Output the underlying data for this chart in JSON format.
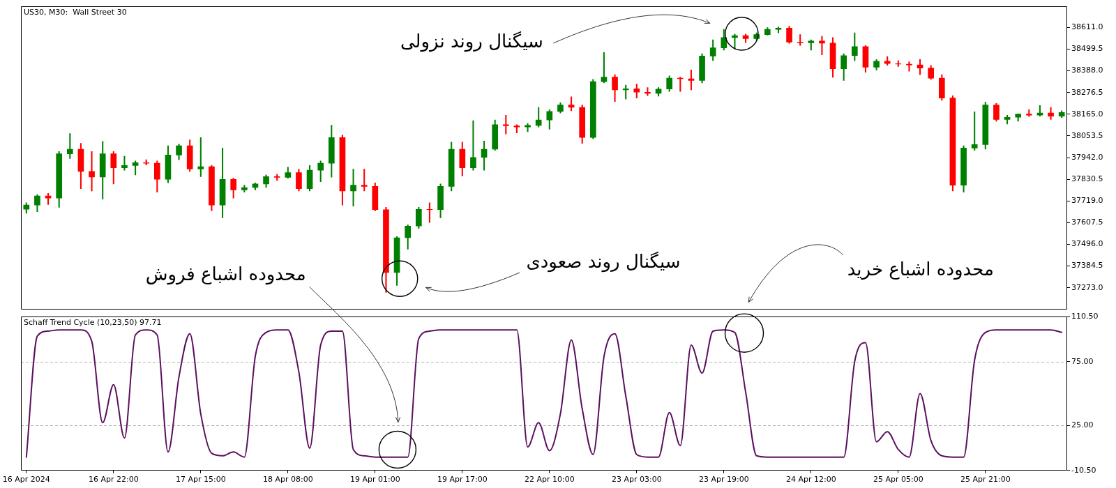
{
  "chart_data": [
    {
      "type": "candlestick",
      "title": "US30, M30:  Wall Street 30",
      "categories": [
        null,
        null,
        null,
        null,
        null,
        null,
        null,
        null,
        null,
        null,
        null,
        null,
        null,
        null,
        null,
        null,
        null,
        null,
        null,
        null,
        null,
        null,
        null,
        null,
        null,
        null,
        null,
        null,
        null,
        null,
        null,
        null,
        null,
        null,
        null,
        null,
        null,
        null,
        null,
        null,
        null,
        null,
        null,
        null,
        null,
        null,
        null,
        null,
        null,
        null,
        null,
        null,
        null,
        null,
        null,
        null,
        null,
        null,
        null,
        null,
        null,
        null,
        null,
        null,
        null,
        null,
        null,
        null,
        null,
        null,
        null,
        null,
        null,
        null,
        null,
        null,
        null,
        null,
        null,
        null,
        null,
        null,
        null,
        null,
        null,
        null,
        null,
        null,
        null,
        null,
        null,
        null,
        null,
        null,
        null,
        null
      ],
      "ohlc": [
        [
          37676,
          37710,
          37656,
          37698
        ],
        [
          37698,
          37752,
          37664,
          37745
        ],
        [
          37745,
          37758,
          37700,
          37734
        ],
        [
          37734,
          37973,
          37686,
          37961
        ],
        [
          37961,
          38065,
          37937,
          37985
        ],
        [
          37985,
          38015,
          37782,
          37871
        ],
        [
          37871,
          37973,
          37770,
          37842
        ],
        [
          37842,
          38025,
          37728,
          37961
        ],
        [
          37961,
          37973,
          37806,
          37889
        ],
        [
          37889,
          37949,
          37877,
          37901
        ],
        [
          37901,
          37925,
          37853,
          37916
        ],
        [
          37916,
          37931,
          37904,
          37913
        ],
        [
          37913,
          37925,
          37764,
          37830
        ],
        [
          37830,
          38003,
          37812,
          37955
        ],
        [
          37955,
          38011,
          37931,
          38003
        ],
        [
          38003,
          38033,
          37871,
          37883
        ],
        [
          37883,
          38045,
          37844,
          37895
        ],
        [
          37895,
          37901,
          37668,
          37698
        ],
        [
          37698,
          37991,
          37632,
          37830
        ],
        [
          37830,
          37836,
          37734,
          37776
        ],
        [
          37776,
          37800,
          37764,
          37788
        ],
        [
          37788,
          37812,
          37776,
          37806
        ],
        [
          37806,
          37853,
          37788,
          37844
        ],
        [
          37844,
          37856,
          37824,
          37840
        ],
        [
          37840,
          37892,
          37836,
          37865
        ],
        [
          37865,
          37883,
          37770,
          37782
        ],
        [
          37782,
          37901,
          37770,
          37877
        ],
        [
          37877,
          37925,
          37818,
          37913
        ],
        [
          37913,
          38108,
          37841,
          38045
        ],
        [
          38045,
          38057,
          37698,
          37770
        ],
        [
          37770,
          37883,
          37692,
          37800
        ],
        [
          37800,
          37883,
          37770,
          37794
        ],
        [
          37794,
          37812,
          37668,
          37674
        ],
        [
          37674,
          37686,
          37249,
          37351
        ],
        [
          37351,
          37536,
          37285,
          37530
        ],
        [
          37530,
          37596,
          37471,
          37590
        ],
        [
          37590,
          37686,
          37578,
          37676
        ],
        [
          37676,
          37710,
          37608,
          37674
        ],
        [
          37674,
          37806,
          37632,
          37794
        ],
        [
          37794,
          38021,
          37770,
          37985
        ],
        [
          37985,
          38021,
          37847,
          37889
        ],
        [
          37889,
          38132,
          37877,
          37943
        ],
        [
          37943,
          38027,
          37877,
          37985
        ],
        [
          37985,
          38135,
          37979,
          38111
        ],
        [
          38111,
          38159,
          38063,
          38105
        ],
        [
          38105,
          38111,
          38069,
          38099
        ],
        [
          38099,
          38117,
          38075,
          38107
        ],
        [
          38107,
          38200,
          38099,
          38135
        ],
        [
          38135,
          38188,
          38087,
          38179
        ],
        [
          38179,
          38224,
          38171,
          38212
        ],
        [
          38212,
          38254,
          38182,
          38200
        ],
        [
          38200,
          38212,
          38015,
          38045
        ],
        [
          38045,
          38344,
          38039,
          38332
        ],
        [
          38332,
          38482,
          38326,
          38356
        ],
        [
          38356,
          38368,
          38230,
          38290
        ],
        [
          38290,
          38314,
          38242,
          38296
        ],
        [
          38296,
          38320,
          38248,
          38278
        ],
        [
          38278,
          38302,
          38260,
          38272
        ],
        [
          38272,
          38302,
          38258,
          38294
        ],
        [
          38294,
          38362,
          38282,
          38350
        ],
        [
          38350,
          38356,
          38282,
          38347
        ],
        [
          38347,
          38392,
          38290,
          38338
        ],
        [
          38338,
          38476,
          38326,
          38464
        ],
        [
          38464,
          38547,
          38440,
          38506
        ],
        [
          38506,
          38601,
          38494,
          38559
        ],
        [
          38559,
          38577,
          38500,
          38569
        ],
        [
          38569,
          38577,
          38533,
          38553
        ],
        [
          38553,
          38583,
          38545,
          38574
        ],
        [
          38574,
          38610,
          38571,
          38601
        ],
        [
          38601,
          38613,
          38583,
          38607
        ],
        [
          38607,
          38617,
          38529,
          38535
        ],
        [
          38535,
          38574,
          38518,
          38532
        ],
        [
          38532,
          38547,
          38494,
          38541
        ],
        [
          38541,
          38565,
          38470,
          38530
        ],
        [
          38530,
          38559,
          38354,
          38398
        ],
        [
          38398,
          38476,
          38338,
          38466
        ],
        [
          38466,
          38583,
          38440,
          38512
        ],
        [
          38512,
          38518,
          38380,
          38406
        ],
        [
          38406,
          38446,
          38392,
          38437
        ],
        [
          38437,
          38461,
          38416,
          38425
        ],
        [
          38425,
          38440,
          38410,
          38422
        ],
        [
          38422,
          38434,
          38386,
          38418
        ],
        [
          38418,
          38446,
          38368,
          38402
        ],
        [
          38402,
          38416,
          38344,
          38350
        ],
        [
          38350,
          38368,
          38236,
          38248
        ],
        [
          38248,
          38260,
          37770,
          37800
        ],
        [
          37800,
          38003,
          37764,
          37991
        ],
        [
          37991,
          38177,
          37979,
          38009
        ],
        [
          38009,
          38227,
          37985,
          38212
        ],
        [
          38212,
          38220,
          38129,
          38138
        ],
        [
          38138,
          38159,
          38114,
          38149
        ],
        [
          38149,
          38167,
          38129,
          38166
        ],
        [
          38166,
          38188,
          38153,
          38160
        ],
        [
          38160,
          38210,
          38155,
          38171
        ],
        [
          38171,
          38200,
          38138,
          38155
        ],
        [
          38155,
          38183,
          38147,
          38174
        ]
      ],
      "colors": [
        "#008000",
        "#008000",
        "#ff0000",
        "#008000",
        "#008000",
        "#ff0000",
        "#ff0000",
        "#008000",
        "#ff0000",
        "#008000",
        "#008000",
        "#ff0000",
        "#ff0000",
        "#008000",
        "#008000",
        "#ff0000",
        "#008000",
        "#ff0000",
        "#008000",
        "#ff0000",
        "#008000",
        "#008000",
        "#008000",
        "#ff0000",
        "#008000",
        "#ff0000",
        "#008000",
        "#008000",
        "#008000",
        "#ff0000",
        "#008000",
        "#ff0000",
        "#ff0000",
        "#ff0000",
        "#008000",
        "#008000",
        "#008000",
        "#ff0000",
        "#008000",
        "#008000",
        "#ff0000",
        "#008000",
        "#008000",
        "#008000",
        "#ff0000",
        "#ff0000",
        "#008000",
        "#008000",
        "#008000",
        "#008000",
        "#ff0000",
        "#ff0000",
        "#008000",
        "#008000",
        "#ff0000",
        "#008000",
        "#ff0000",
        "#ff0000",
        "#008000",
        "#008000",
        "#ff0000",
        "#ff0000",
        "#008000",
        "#008000",
        "#008000",
        "#008000",
        "#ff0000",
        "#008000",
        "#008000",
        "#008000",
        "#ff0000",
        "#ff0000",
        "#008000",
        "#ff0000",
        "#ff0000",
        "#008000",
        "#008000",
        "#ff0000",
        "#008000",
        "#ff0000",
        "#ff0000",
        "#ff0000",
        "#ff0000",
        "#ff0000",
        "#ff0000",
        "#ff0000",
        "#008000",
        "#008000",
        "#008000",
        "#ff0000",
        "#008000",
        "#008000",
        "#ff0000",
        "#008000",
        "#ff0000",
        "#008000"
      ],
      "ylim": [
        37163,
        38721
      ],
      "yticks": [
        {
          "value": 37273,
          "label": "37273.0"
        },
        37384.5,
        {
          "value": 37496,
          "label": "37496.0"
        },
        37607.5,
        {
          "value": 37719,
          "label": "37719.0"
        },
        37830.5,
        {
          "value": 37942,
          "label": "37942.0"
        },
        38053.5,
        {
          "value": 38165,
          "label": "38165.0"
        },
        38276.5,
        {
          "value": 38388,
          "label": "38388.0"
        },
        38499.5,
        {
          "value": 38611,
          "label": "38611.0"
        }
      ],
      "tick_labels": "y",
      "annotations": [
        "سیگنال روند نزولی",
        "سیگنال روند صعودی"
      ]
    },
    {
      "type": "line",
      "title": "Schaff Trend Cycle (10,23,50) 97.71",
      "categories": [
        "16 Apr 2024",
        null,
        null,
        null,
        null,
        null,
        null,
        null,
        "16 Apr 22:00",
        null,
        null,
        null,
        null,
        null,
        null,
        null,
        "17 Apr 15:00",
        null,
        null,
        null,
        null,
        null,
        null,
        null,
        "18 Apr 08:00",
        null,
        null,
        null,
        null,
        null,
        null,
        null,
        "19 Apr 01:00",
        null,
        null,
        null,
        null,
        null,
        null,
        null,
        "19 Apr 17:00",
        null,
        null,
        null,
        null,
        null,
        null,
        null,
        "22 Apr 10:00",
        null,
        null,
        null,
        null,
        null,
        null,
        null,
        "23 Apr 03:00",
        null,
        null,
        null,
        null,
        null,
        null,
        null,
        "23 Apr 19:00",
        null,
        null,
        null,
        null,
        null,
        null,
        null,
        "24 Apr 12:00",
        null,
        null,
        null,
        null,
        null,
        null,
        null,
        "25 Apr 05:00",
        null,
        null,
        null,
        null,
        null,
        null,
        null,
        "25 Apr 21:00",
        null,
        null,
        null,
        null,
        null,
        null,
        null
      ],
      "values": [
        0,
        95,
        99,
        100,
        100,
        100,
        91,
        27,
        57,
        15,
        96,
        100,
        96,
        4,
        63,
        97,
        34,
        3,
        1,
        4,
        0,
        79,
        98,
        100,
        100,
        67,
        7,
        88,
        99,
        99,
        6,
        1,
        0,
        0,
        0,
        0,
        93,
        99,
        100,
        100,
        100,
        100,
        100,
        100,
        100,
        100,
        8,
        27,
        5,
        34,
        92,
        38,
        2,
        79,
        97,
        48,
        2,
        0,
        0,
        35,
        9,
        88,
        66,
        99,
        100,
        98,
        51,
        1,
        0,
        0,
        0,
        0,
        0,
        0,
        0,
        0,
        75,
        90,
        12,
        20,
        6,
        0,
        50,
        13,
        1,
        0,
        0,
        76,
        98,
        100,
        100,
        100,
        100,
        100,
        100,
        98
      ],
      "color": "#5c0f5f",
      "ylim": [
        -10.5,
        110.5
      ],
      "yticks": [
        {
          "value": -10.5,
          "label": "-10.50"
        },
        {
          "value": 25,
          "label": "25.00"
        },
        {
          "value": 75,
          "label": "75.00"
        },
        {
          "value": 110.5,
          "label": "110.50"
        }
      ],
      "ref_lines": [
        {
          "axis": "y",
          "value": 25,
          "color": "#b4b4b4",
          "line_style": "dashed"
        },
        {
          "axis": "y",
          "value": 75,
          "color": "#b4b4b4",
          "line_style": "dashed"
        }
      ],
      "annotations": [
        "محدوده اشباع فروش",
        "محدوده اشباع خرید"
      ]
    }
  ]
}
